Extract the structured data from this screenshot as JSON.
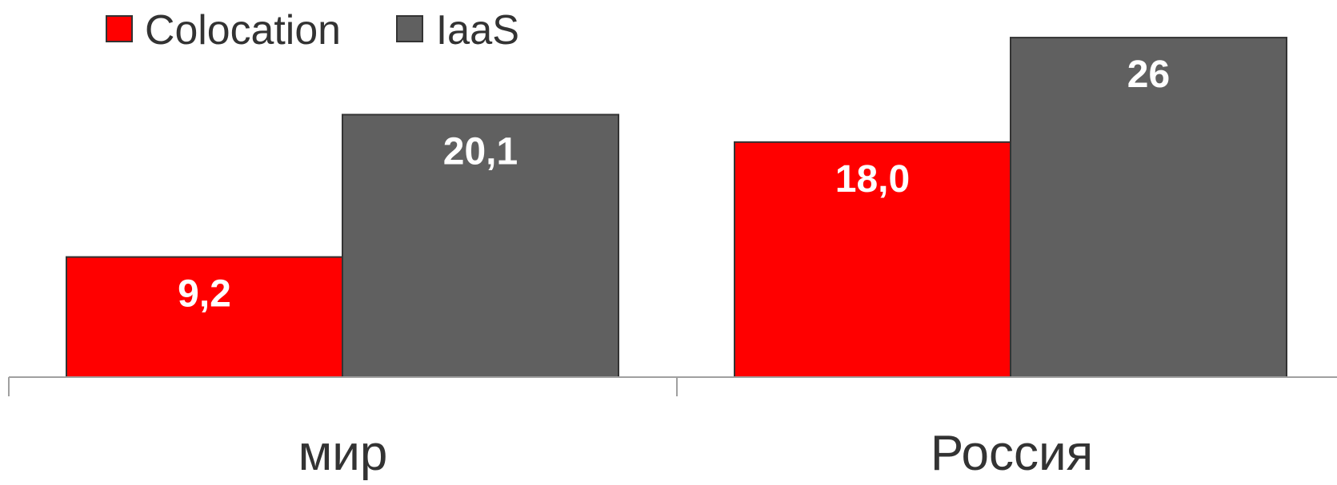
{
  "chart_data": {
    "type": "bar",
    "categories": [
      "мир",
      "Россия"
    ],
    "series": [
      {
        "name": "Colocation",
        "color": "#ff0000",
        "values": [
          9.2,
          18.0
        ],
        "labels": [
          "9,2",
          "18,0"
        ]
      },
      {
        "name": "IaaS",
        "color": "#606060",
        "values": [
          20.1,
          26
        ],
        "labels": [
          "20,1",
          "26"
        ]
      }
    ],
    "ylim": [
      0,
      26.8
    ],
    "grid": false,
    "legend_position": "top-left",
    "title": "",
    "xlabel": "",
    "ylabel": ""
  }
}
